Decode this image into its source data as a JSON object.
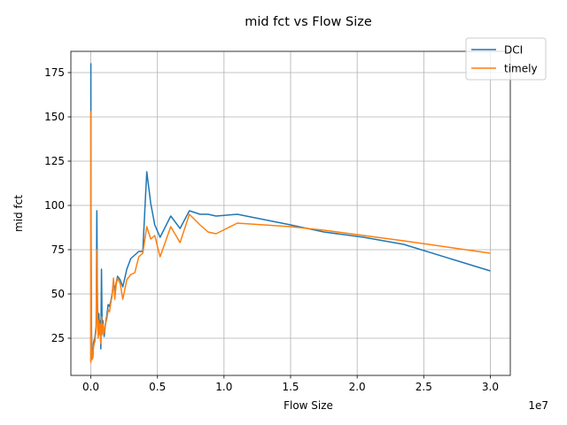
{
  "chart_data": {
    "type": "line",
    "title": "mid fct vs Flow Size",
    "xlabel": "Flow Size",
    "ylabel": "mid fct",
    "x_offset_label": "1e7",
    "xlim": [
      -1500000,
      31500000
    ],
    "ylim": [
      4,
      187
    ],
    "x_ticks": [
      0,
      5000000,
      10000000,
      15000000,
      20000000,
      25000000,
      30000000
    ],
    "x_tick_labels": [
      "0.0",
      "0.5",
      "1.0",
      "1.5",
      "2.0",
      "2.5",
      "3.0"
    ],
    "y_ticks": [
      25,
      50,
      75,
      100,
      125,
      150,
      175
    ],
    "y_tick_labels": [
      "25",
      "50",
      "75",
      "100",
      "125",
      "150",
      "175"
    ],
    "grid": true,
    "legend_position": "top-right",
    "series": [
      {
        "name": "DCI",
        "color": "#1f77b4",
        "x": [
          0,
          1000,
          5000,
          10000,
          20000,
          40000,
          60000,
          80000,
          100000,
          150000,
          200000,
          250000,
          300000,
          400000,
          450000,
          500000,
          550000,
          600000,
          650000,
          700000,
          750000,
          800000,
          850000,
          900000,
          1000000,
          1100000,
          1200000,
          1300000,
          1400000,
          1500000,
          1600000,
          1700000,
          1800000,
          1900000,
          2000000,
          2200000,
          2400000,
          2700000,
          3000000,
          3300000,
          3600000,
          3900000,
          4200000,
          4500000,
          4800000,
          5200000,
          6000000,
          6700000,
          7400000,
          8200000,
          8800000,
          9400000,
          11000000,
          15000000,
          17500000,
          20500000,
          23500000,
          30000000
        ],
        "y": [
          12,
          180,
          160,
          120,
          80,
          40,
          25,
          20,
          15,
          14,
          22,
          24,
          25,
          32,
          97,
          45,
          28,
          39,
          30,
          35,
          19,
          64,
          28,
          35,
          26,
          33,
          38,
          44,
          43,
          46,
          50,
          57,
          52,
          56,
          60,
          58,
          54,
          64,
          70,
          72,
          74,
          74,
          119,
          101,
          89,
          82,
          94,
          87,
          97,
          95,
          95,
          94,
          95,
          89,
          85,
          82,
          78,
          63
        ]
      },
      {
        "name": "timely",
        "color": "#ff7f0e",
        "x": [
          0,
          1000,
          5000,
          10000,
          20000,
          40000,
          60000,
          80000,
          100000,
          150000,
          200000,
          250000,
          300000,
          400000,
          450000,
          500000,
          550000,
          600000,
          650000,
          700000,
          750000,
          800000,
          850000,
          900000,
          1000000,
          1100000,
          1200000,
          1300000,
          1400000,
          1500000,
          1600000,
          1700000,
          1800000,
          1900000,
          2000000,
          2200000,
          2400000,
          2700000,
          3000000,
          3300000,
          3600000,
          3900000,
          4200000,
          4500000,
          4800000,
          5200000,
          6000000,
          6700000,
          7400000,
          8200000,
          8800000,
          9400000,
          11000000,
          15000000,
          17500000,
          20500000,
          23500000,
          30000000
        ],
        "y": [
          11,
          153,
          140,
          100,
          70,
          35,
          22,
          18,
          13,
          14,
          20,
          22,
          23,
          30,
          75,
          40,
          25,
          35,
          27,
          33,
          22,
          37,
          27,
          33,
          28,
          33,
          36,
          41,
          40,
          45,
          49,
          59,
          47,
          55,
          59,
          56,
          47,
          58,
          61,
          62,
          71,
          73,
          88,
          81,
          83,
          71,
          88,
          79,
          95,
          89,
          85,
          84,
          90,
          88,
          86,
          83,
          80,
          73
        ]
      }
    ]
  }
}
